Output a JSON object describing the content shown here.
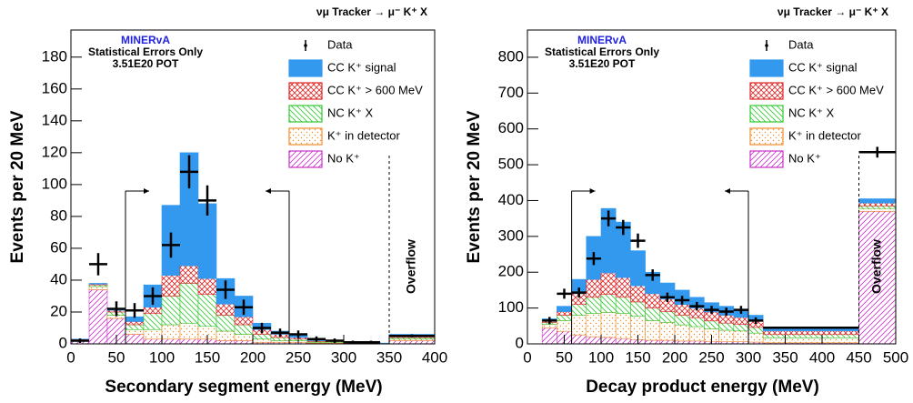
{
  "charts": [
    {
      "chart_data": {
        "type": "histogram",
        "title": "νμ Tracker → μ⁻ K⁺ X",
        "experiment": "MINERvA",
        "notes": [
          "Statistical Errors Only",
          "3.51E20 POT"
        ],
        "x_label": "Secondary segment energy (MeV)",
        "y_label": "Events per 20 MeV",
        "overflow_label": "Overflow",
        "overflow_edge": 350,
        "cuts": [
          60,
          240
        ],
        "bins": [
          0,
          20,
          40,
          60,
          80,
          100,
          120,
          140,
          160,
          180,
          200,
          220,
          240,
          260,
          280,
          300,
          320,
          340,
          350,
          400
        ],
        "xlim": [
          0,
          400
        ],
        "xticks": [
          0,
          50,
          100,
          150,
          200,
          250,
          300,
          350,
          400
        ],
        "ylim": [
          0,
          197
        ],
        "yticks": [
          0,
          20,
          40,
          60,
          80,
          100,
          120,
          140,
          160,
          180
        ],
        "legend": "top-right",
        "points": {
          "name": "Data",
          "color": "#000000",
          "values": [
            2,
            50,
            22,
            21,
            30,
            62,
            108,
            90,
            34,
            23,
            10,
            7,
            6,
            3,
            2,
            1,
            1,
            null,
            5
          ],
          "errors": [
            1.4,
            7,
            4.7,
            4.6,
            5.5,
            7.9,
            10.4,
            9.5,
            5.8,
            4.8,
            3.2,
            2.6,
            2.4,
            1.7,
            1.4,
            1,
            1,
            null,
            1
          ]
        },
        "series": [
          {
            "name": "No K⁺",
            "color": "#c832c8",
            "fill_style": "hatch-right",
            "values": [
              2,
              34,
              16,
              6,
              3,
              3,
              3,
              3,
              2,
              2,
              1,
              1,
              1,
              0.5,
              0.5,
              0.5,
              0.3,
              0.2,
              2
            ]
          },
          {
            "name": "K⁺ in detector",
            "color": "#f08c28",
            "fill_style": "dots",
            "values": [
              0.5,
              2,
              2,
              3,
              6,
              9,
              10,
              8,
              6,
              4,
              2,
              1,
              1,
              0.5,
              0.5,
              0.3,
              0.2,
              0.1,
              1
            ]
          },
          {
            "name": "NC K⁺ X",
            "color": "#32c832",
            "fill_style": "hatch-left",
            "values": [
              0.3,
              1,
              2,
              3,
              10,
              18,
              25,
              20,
              10,
              6,
              3,
              2,
              1,
              0.5,
              0.5,
              0.3,
              0.2,
              0.1,
              1
            ]
          },
          {
            "name": "CC K⁺ > 600 MeV",
            "color": "#e02828",
            "fill_style": "crosshatch",
            "values": [
              0.1,
              0.5,
              1,
              2,
              4,
              13,
              11,
              10,
              7,
              5,
              3,
              2,
              1,
              0.5,
              0.2,
              0.2,
              0.1,
              0,
              1
            ]
          },
          {
            "name": "CC K⁺ signal",
            "color": "#3399ee",
            "fill_style": "solid",
            "values": [
              0.1,
              0.5,
              1,
              3,
              14,
              44,
              71,
              47,
              16,
              13,
              4,
              2,
              2,
              1,
              0.3,
              0.2,
              0.2,
              0.1,
              1
            ]
          }
        ]
      }
    },
    {
      "chart_data": {
        "type": "histogram",
        "title": "νμ Tracker → μ⁻ K⁺ X",
        "experiment": "MINERvA",
        "notes": [
          "Statistical Errors Only",
          "3.51E20 POT"
        ],
        "x_label": "Decay product energy (MeV)",
        "y_label": "Events per 20 MeV",
        "overflow_label": "Overflow",
        "overflow_edge": 450,
        "cuts": [
          60,
          300
        ],
        "bins": [
          0,
          20,
          40,
          60,
          80,
          100,
          120,
          140,
          160,
          180,
          200,
          220,
          240,
          260,
          280,
          300,
          320,
          450,
          500
        ],
        "xlim": [
          0,
          500
        ],
        "xticks": [
          0,
          50,
          100,
          150,
          200,
          250,
          300,
          350,
          400,
          450,
          500
        ],
        "ylim": [
          0,
          876
        ],
        "yticks": [
          0,
          100,
          200,
          300,
          400,
          500,
          600,
          700,
          800
        ],
        "legend": "top-right",
        "points": {
          "name": "Data",
          "color": "#000000",
          "values": [
            null,
            65,
            140,
            143,
            238,
            350,
            325,
            288,
            192,
            130,
            122,
            105,
            95,
            90,
            95,
            65,
            45,
            535
          ],
          "errors": [
            null,
            10,
            14,
            14,
            18,
            22,
            21,
            20,
            16,
            13,
            12,
            12,
            11,
            11,
            11,
            9,
            3,
            15
          ]
        },
        "series": [
          {
            "name": "No K⁺",
            "color": "#c832c8",
            "fill_style": "hatch-right",
            "values": [
              0,
              45,
              35,
              25,
              20,
              18,
              15,
              12,
              10,
              10,
              8,
              8,
              7,
              6,
              6,
              5,
              3,
              370
            ]
          },
          {
            "name": "K⁺ in detector",
            "color": "#f08c28",
            "fill_style": "dots",
            "values": [
              0,
              10,
              30,
              55,
              65,
              70,
              70,
              65,
              55,
              50,
              45,
              40,
              35,
              32,
              30,
              25,
              14,
              8
            ]
          },
          {
            "name": "NC K⁺ X",
            "color": "#32c832",
            "fill_style": "hatch-left",
            "values": [
              0,
              5,
              15,
              30,
              45,
              50,
              45,
              40,
              35,
              30,
              27,
              25,
              22,
              20,
              18,
              16,
              9,
              7
            ]
          },
          {
            "name": "CC K⁺ > 600 MeV",
            "color": "#e02828",
            "fill_style": "crosshatch",
            "values": [
              0,
              5,
              10,
              30,
              50,
              60,
              55,
              45,
              40,
              35,
              30,
              27,
              25,
              22,
              20,
              18,
              10,
              8
            ]
          },
          {
            "name": "CC K⁺ signal",
            "color": "#3399ee",
            "fill_style": "solid",
            "values": [
              0,
              5,
              15,
              40,
              120,
              180,
              155,
              98,
              60,
              45,
              40,
              30,
              26,
              25,
              21,
              16,
              9,
              12
            ]
          }
        ]
      }
    }
  ]
}
